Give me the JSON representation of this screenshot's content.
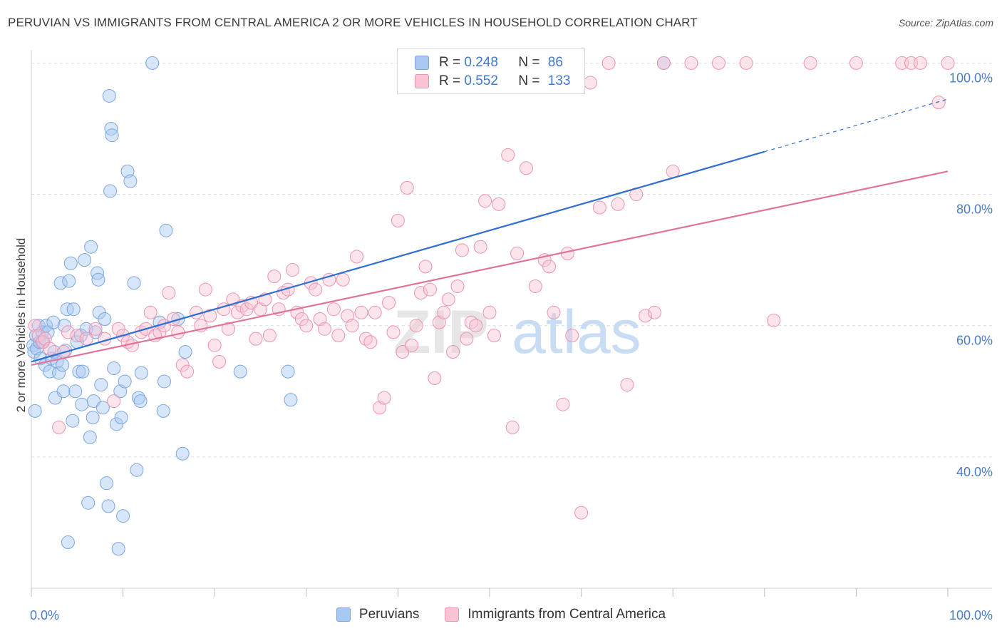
{
  "header": {
    "title": "PERUVIAN VS IMMIGRANTS FROM CENTRAL AMERICA 2 OR MORE VEHICLES IN HOUSEHOLD CORRELATION CHART",
    "source": "Source: ZipAtlas.com"
  },
  "legend": {
    "series": [
      {
        "r_label": "R =",
        "r_value": "0.248",
        "n_label": "N =",
        "n_value": "86",
        "color": "#a9c8f1",
        "border": "#7aa6e0"
      },
      {
        "r_label": "R =",
        "r_value": "0.552",
        "n_label": "N =",
        "n_value": "133",
        "color": "#f8c3d3",
        "border": "#ec93b1"
      }
    ]
  },
  "bottom_legend": {
    "items": [
      "Peruvians",
      "Immigrants from Central America"
    ]
  },
  "watermark": {
    "zip": "ZIP",
    "atlas": "atlas"
  },
  "chart_data": {
    "type": "scatter",
    "title": "PERUVIAN VS IMMIGRANTS FROM CENTRAL AMERICA 2 OR MORE VEHICLES IN HOUSEHOLD CORRELATION CHART",
    "xlabel": "",
    "ylabel": "2 or more Vehicles in Household",
    "xlim": [
      0,
      100
    ],
    "ylim": [
      20,
      102
    ],
    "x_ticks": [
      "0.0%",
      "100.0%"
    ],
    "y_ticks": [
      {
        "value": 40,
        "label": "40.0%"
      },
      {
        "value": 60,
        "label": "60.0%"
      },
      {
        "value": 80,
        "label": "80.0%"
      },
      {
        "value": 100,
        "label": "100.0%"
      }
    ],
    "grid": true,
    "legend_position": "top-center",
    "series": [
      {
        "name": "Peruvians",
        "color": "#7aa6e0",
        "fill": "rgba(169,200,241,0.45)",
        "trend": {
          "x0": 0,
          "y0": 54.5,
          "x1": 80,
          "y1": 86.5,
          "dashed_to": 100,
          "dashed_y": 94.5,
          "color": "#2f6fd1"
        },
        "points": [
          [
            0.2,
            57
          ],
          [
            0.3,
            56
          ],
          [
            0.4,
            47
          ],
          [
            0.5,
            58.5
          ],
          [
            0.6,
            56.5
          ],
          [
            0.8,
            60
          ],
          [
            0.9,
            57.5
          ],
          [
            1.0,
            55
          ],
          [
            1.2,
            59
          ],
          [
            1.3,
            57.5
          ],
          [
            1.5,
            54
          ],
          [
            1.6,
            60
          ],
          [
            1.8,
            59
          ],
          [
            2.0,
            53
          ],
          [
            2.2,
            55
          ],
          [
            2.4,
            60.5
          ],
          [
            2.5,
            56
          ],
          [
            2.6,
            49
          ],
          [
            2.8,
            54.5
          ],
          [
            3.0,
            52.8
          ],
          [
            3.2,
            66.5
          ],
          [
            3.4,
            54
          ],
          [
            3.5,
            50
          ],
          [
            3.6,
            60
          ],
          [
            3.7,
            56.2
          ],
          [
            3.9,
            62.5
          ],
          [
            4.0,
            27
          ],
          [
            4.1,
            66.8
          ],
          [
            4.3,
            69.5
          ],
          [
            4.5,
            45.5
          ],
          [
            4.6,
            62.5
          ],
          [
            4.8,
            50
          ],
          [
            5.0,
            57.5
          ],
          [
            5.2,
            53
          ],
          [
            5.4,
            58.5
          ],
          [
            5.5,
            48
          ],
          [
            5.6,
            53
          ],
          [
            5.8,
            70
          ],
          [
            6.0,
            59.5
          ],
          [
            6.2,
            33
          ],
          [
            6.4,
            43
          ],
          [
            6.5,
            72
          ],
          [
            6.7,
            46
          ],
          [
            6.8,
            48.5
          ],
          [
            7.0,
            59
          ],
          [
            7.2,
            68
          ],
          [
            7.3,
            67
          ],
          [
            7.4,
            62
          ],
          [
            7.6,
            51
          ],
          [
            7.8,
            47.5
          ],
          [
            8.0,
            61
          ],
          [
            8.2,
            36
          ],
          [
            8.4,
            32.5
          ],
          [
            8.5,
            95
          ],
          [
            8.6,
            80.5
          ],
          [
            8.7,
            90
          ],
          [
            8.8,
            89
          ],
          [
            9.0,
            53.5
          ],
          [
            9.3,
            45
          ],
          [
            9.5,
            26
          ],
          [
            9.7,
            50
          ],
          [
            9.8,
            46
          ],
          [
            10.0,
            31
          ],
          [
            10.2,
            51.5
          ],
          [
            10.5,
            83.5
          ],
          [
            10.8,
            82
          ],
          [
            11.2,
            66.5
          ],
          [
            11.5,
            38
          ],
          [
            11.7,
            49
          ],
          [
            11.9,
            48.5
          ],
          [
            12.0,
            52.8
          ],
          [
            13.2,
            100
          ],
          [
            14.0,
            60.5
          ],
          [
            14.4,
            47
          ],
          [
            14.5,
            51.5
          ],
          [
            14.7,
            74.5
          ],
          [
            16.0,
            61
          ],
          [
            16.5,
            40.5
          ],
          [
            16.8,
            56
          ],
          [
            22.8,
            53
          ],
          [
            28.0,
            53
          ],
          [
            28.3,
            48.7
          ],
          [
            69.0,
            100
          ]
        ]
      },
      {
        "name": "Immigrants from Central America",
        "color": "#ec93b1",
        "fill": "rgba(248,195,211,0.45)",
        "trend": {
          "x0": 0,
          "y0": 54,
          "x1": 100,
          "y1": 83.5,
          "color": "#e0739a"
        },
        "points": [
          [
            0.4,
            60
          ],
          [
            0.8,
            58.5
          ],
          [
            1.2,
            57.5
          ],
          [
            1.5,
            58
          ],
          [
            2.0,
            56.5
          ],
          [
            3.0,
            44.5
          ],
          [
            3.5,
            56
          ],
          [
            4.0,
            59
          ],
          [
            5.0,
            58.5
          ],
          [
            6.0,
            58
          ],
          [
            7.0,
            59.5
          ],
          [
            8.0,
            58
          ],
          [
            9.0,
            48.5
          ],
          [
            9.5,
            59.5
          ],
          [
            10.0,
            58.5
          ],
          [
            10.5,
            57.5
          ],
          [
            11.0,
            57
          ],
          [
            12.0,
            59
          ],
          [
            12.5,
            59.5
          ],
          [
            13.0,
            62
          ],
          [
            13.5,
            58.5
          ],
          [
            14.0,
            59
          ],
          [
            14.5,
            60
          ],
          [
            15.0,
            65
          ],
          [
            15.5,
            61
          ],
          [
            16.0,
            59
          ],
          [
            16.5,
            54
          ],
          [
            17.0,
            53
          ],
          [
            18.0,
            62
          ],
          [
            18.5,
            60
          ],
          [
            19.0,
            65.5
          ],
          [
            19.5,
            61.5
          ],
          [
            20.0,
            57
          ],
          [
            20.5,
            54.5
          ],
          [
            21.0,
            62.5
          ],
          [
            21.5,
            59.5
          ],
          [
            22.0,
            64
          ],
          [
            22.5,
            62
          ],
          [
            23.0,
            63
          ],
          [
            23.5,
            62.5
          ],
          [
            24.0,
            63.5
          ],
          [
            24.5,
            58
          ],
          [
            25.0,
            62.5
          ],
          [
            25.5,
            64
          ],
          [
            26.0,
            58.5
          ],
          [
            26.5,
            67.5
          ],
          [
            27.0,
            62.5
          ],
          [
            27.5,
            65
          ],
          [
            28.0,
            65.5
          ],
          [
            28.5,
            68.5
          ],
          [
            29.0,
            62
          ],
          [
            29.5,
            61
          ],
          [
            30.0,
            60
          ],
          [
            30.5,
            66.5
          ],
          [
            31.0,
            65.5
          ],
          [
            31.5,
            61
          ],
          [
            32.0,
            59.5
          ],
          [
            32.5,
            67
          ],
          [
            33.0,
            62.5
          ],
          [
            33.5,
            58.5
          ],
          [
            34.0,
            67
          ],
          [
            34.5,
            61.5
          ],
          [
            35.0,
            60
          ],
          [
            35.5,
            70.5
          ],
          [
            36.0,
            62
          ],
          [
            36.5,
            58
          ],
          [
            37.0,
            57.5
          ],
          [
            37.5,
            62
          ],
          [
            38.0,
            47.5
          ],
          [
            38.5,
            49
          ],
          [
            39.0,
            63.5
          ],
          [
            39.5,
            59
          ],
          [
            40.0,
            76
          ],
          [
            40.5,
            56
          ],
          [
            41.0,
            81
          ],
          [
            41.5,
            57
          ],
          [
            42.0,
            60
          ],
          [
            42.5,
            65
          ],
          [
            43.0,
            69
          ],
          [
            43.5,
            65.5
          ],
          [
            44.0,
            52
          ],
          [
            44.5,
            60.5
          ],
          [
            45.0,
            62
          ],
          [
            45.5,
            64
          ],
          [
            46.0,
            56
          ],
          [
            46.5,
            66
          ],
          [
            47.0,
            71.5
          ],
          [
            47.5,
            58
          ],
          [
            48.0,
            60.5
          ],
          [
            48.5,
            60
          ],
          [
            49.0,
            72
          ],
          [
            49.5,
            79
          ],
          [
            50.0,
            62
          ],
          [
            50.5,
            58.5
          ],
          [
            51.0,
            78.5
          ],
          [
            52.0,
            86
          ],
          [
            52.5,
            44.5
          ],
          [
            53.0,
            71
          ],
          [
            54.0,
            84
          ],
          [
            55.0,
            66
          ],
          [
            56.0,
            70
          ],
          [
            56.5,
            69
          ],
          [
            57.0,
            62
          ],
          [
            58.0,
            48
          ],
          [
            58.5,
            71
          ],
          [
            59.0,
            58.5
          ],
          [
            60.0,
            31.5
          ],
          [
            61.0,
            97
          ],
          [
            62.0,
            78
          ],
          [
            63.0,
            100
          ],
          [
            64.0,
            78.5
          ],
          [
            65.0,
            51
          ],
          [
            66.0,
            80
          ],
          [
            67.0,
            61.5
          ],
          [
            68.0,
            62
          ],
          [
            69.0,
            100
          ],
          [
            70.0,
            83.5
          ],
          [
            72.0,
            100
          ],
          [
            75.0,
            100
          ],
          [
            78.0,
            100
          ],
          [
            81.0,
            60.8
          ],
          [
            85.0,
            100
          ],
          [
            90.0,
            100
          ],
          [
            95.0,
            100
          ],
          [
            96.0,
            100
          ],
          [
            97.0,
            100
          ],
          [
            99.0,
            94
          ],
          [
            100.0,
            100
          ]
        ]
      }
    ]
  }
}
